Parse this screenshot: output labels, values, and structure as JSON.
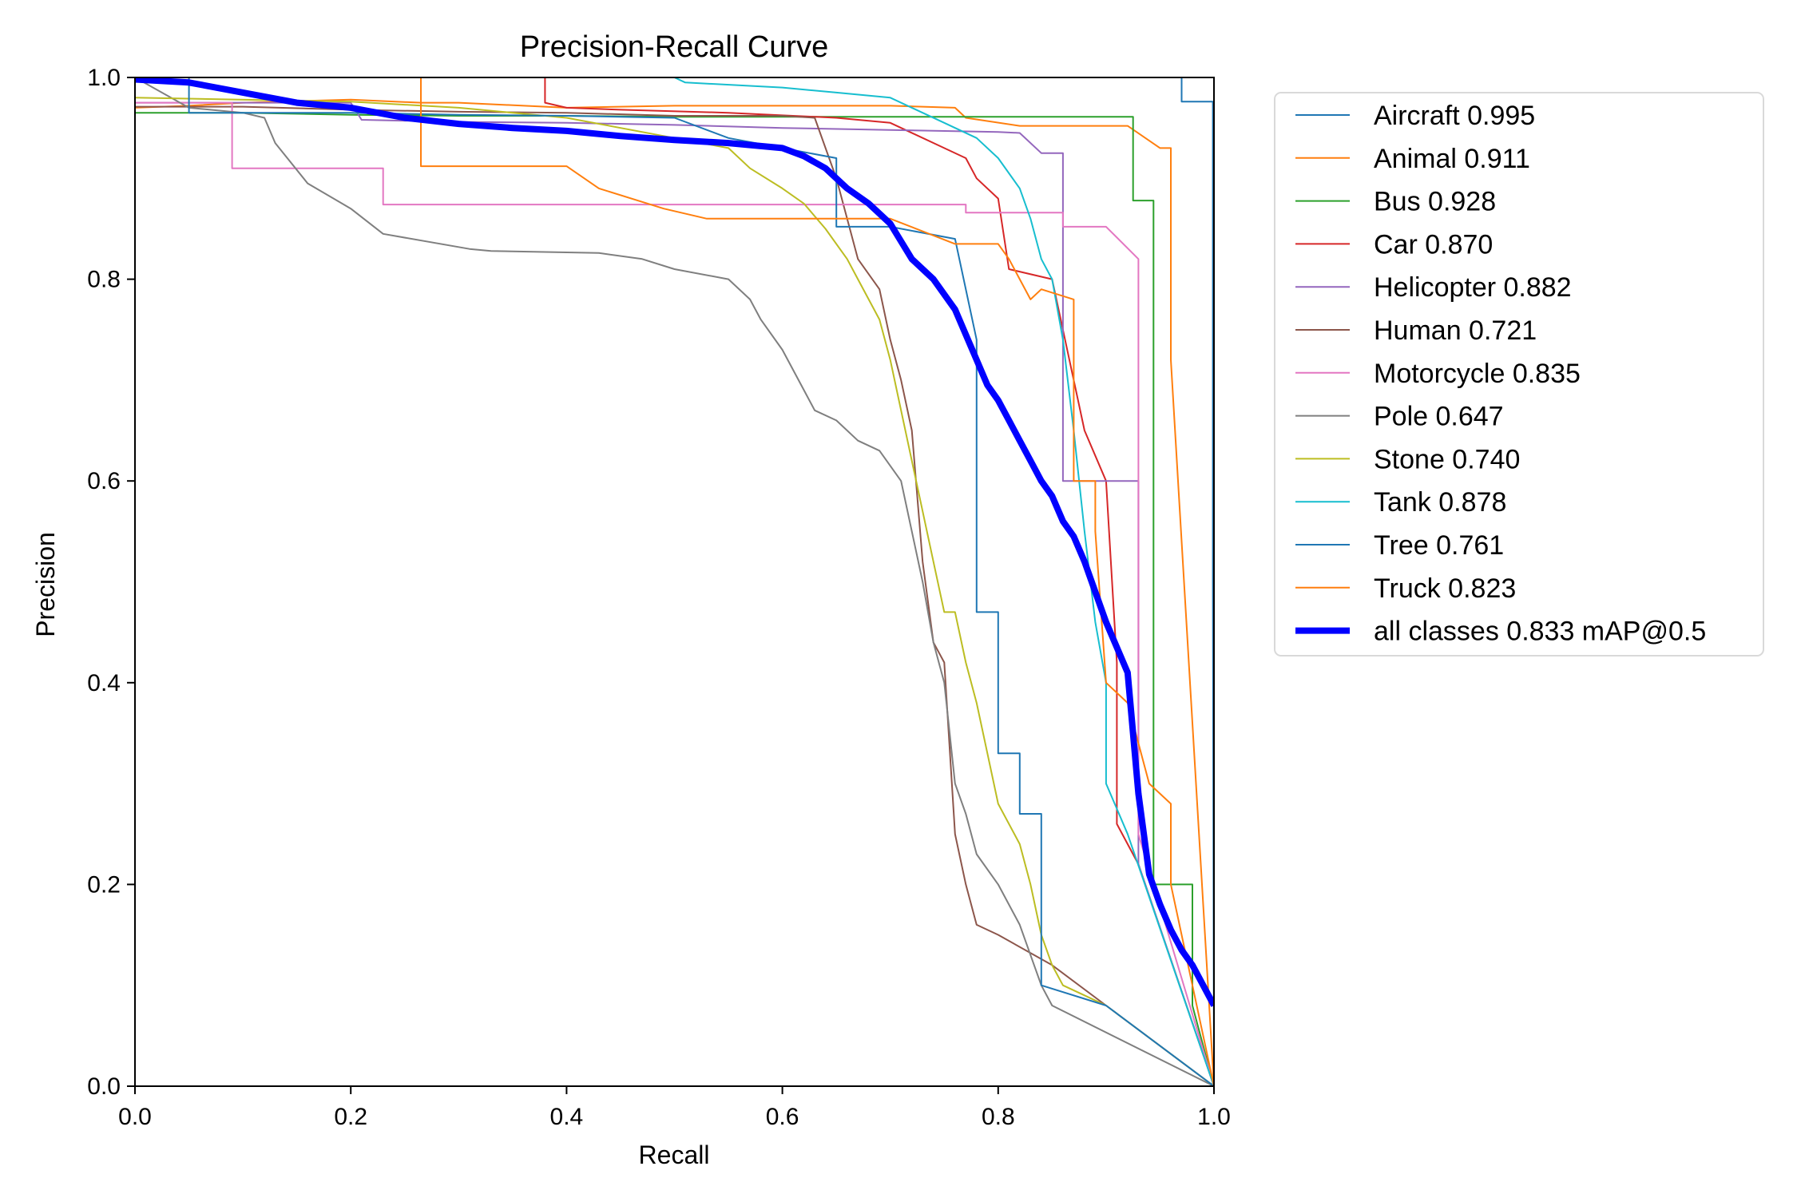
{
  "chart_data": {
    "type": "line",
    "title": "Precision-Recall Curve",
    "xlabel": "Recall",
    "ylabel": "Precision",
    "xlim": [
      0,
      1
    ],
    "ylim": [
      0,
      1
    ],
    "xticks": [
      "0.0",
      "0.2",
      "0.4",
      "0.6",
      "0.8",
      "1.0"
    ],
    "yticks": [
      "0.0",
      "0.2",
      "0.4",
      "0.6",
      "0.8",
      "1.0"
    ],
    "grid": false,
    "legend_position": "outside-right-top",
    "series": [
      {
        "name": "Aircraft 0.995",
        "color": "#1f77b4",
        "x": [
          0,
          0.97,
          0.97,
          0.999,
          0.999,
          1.0
        ],
        "y": [
          1.0,
          1.0,
          0.976,
          0.976,
          0.5,
          0.0
        ]
      },
      {
        "name": "Animal 0.911",
        "color": "#ff7f0e",
        "x": [
          0,
          0.05,
          0.1,
          0.2,
          0.265,
          0.3,
          0.4,
          0.5,
          0.6,
          0.65,
          0.7,
          0.76,
          0.77,
          0.82,
          0.87,
          0.92,
          0.95,
          0.96,
          0.96,
          1.0
        ],
        "y": [
          0.97,
          0.972,
          0.975,
          0.978,
          0.975,
          0.975,
          0.97,
          0.972,
          0.972,
          0.972,
          0.972,
          0.97,
          0.96,
          0.952,
          0.952,
          0.952,
          0.93,
          0.93,
          0.72,
          0.0
        ]
      },
      {
        "name": "Bus 0.928",
        "color": "#2ca02c",
        "x": [
          0,
          0.1,
          0.2,
          0.3,
          0.4,
          0.5,
          0.6,
          0.7,
          0.8,
          0.9,
          0.925,
          0.925,
          0.944,
          0.944,
          0.98,
          0.98,
          1.0
        ],
        "y": [
          0.965,
          0.965,
          0.963,
          0.962,
          0.962,
          0.961,
          0.961,
          0.961,
          0.961,
          0.961,
          0.961,
          0.878,
          0.878,
          0.2,
          0.2,
          0.08,
          0.0
        ]
      },
      {
        "name": "Car 0.870",
        "color": "#d62728",
        "x": [
          0,
          0.38,
          0.38,
          0.4,
          0.45,
          0.55,
          0.65,
          0.7,
          0.75,
          0.77,
          0.78,
          0.8,
          0.81,
          0.85,
          0.87,
          0.88,
          0.9,
          0.91,
          0.91,
          0.93,
          1.0
        ],
        "y": [
          1.0,
          1.0,
          0.975,
          0.97,
          0.968,
          0.965,
          0.96,
          0.955,
          0.93,
          0.92,
          0.9,
          0.88,
          0.81,
          0.8,
          0.7,
          0.65,
          0.6,
          0.42,
          0.26,
          0.22,
          0.0
        ]
      },
      {
        "name": "Helicopter 0.882",
        "color": "#9467bd",
        "x": [
          0,
          0.2,
          0.21,
          0.3,
          0.4,
          0.5,
          0.6,
          0.7,
          0.8,
          0.82,
          0.84,
          0.86,
          0.86,
          0.93,
          0.93,
          1.0
        ],
        "y": [
          0.975,
          0.975,
          0.958,
          0.956,
          0.955,
          0.953,
          0.95,
          0.948,
          0.946,
          0.945,
          0.925,
          0.925,
          0.6,
          0.6,
          0.22,
          0.0
        ]
      },
      {
        "name": "Human 0.721",
        "color": "#8c564b",
        "x": [
          0,
          0.1,
          0.2,
          0.3,
          0.4,
          0.5,
          0.6,
          0.63,
          0.65,
          0.67,
          0.69,
          0.7,
          0.71,
          0.72,
          0.73,
          0.74,
          0.75,
          0.76,
          0.77,
          0.78,
          0.8,
          0.85,
          0.9,
          1.0
        ],
        "y": [
          0.971,
          0.971,
          0.968,
          0.966,
          0.965,
          0.962,
          0.962,
          0.96,
          0.9,
          0.82,
          0.79,
          0.74,
          0.7,
          0.65,
          0.52,
          0.44,
          0.42,
          0.25,
          0.2,
          0.16,
          0.15,
          0.12,
          0.08,
          0.0
        ]
      },
      {
        "name": "Motorcycle 0.835",
        "color": "#e377c2",
        "x": [
          0,
          0.09,
          0.09,
          0.23,
          0.23,
          0.5,
          0.6,
          0.7,
          0.77,
          0.77,
          0.86,
          0.86,
          0.9,
          0.93,
          0.93,
          1.0
        ],
        "y": [
          0.975,
          0.975,
          0.91,
          0.91,
          0.874,
          0.874,
          0.874,
          0.874,
          0.874,
          0.866,
          0.866,
          0.852,
          0.852,
          0.82,
          0.25,
          0.0
        ]
      },
      {
        "name": "Pole 0.647",
        "color": "#7f7f7f",
        "x": [
          0,
          0.05,
          0.1,
          0.12,
          0.13,
          0.16,
          0.2,
          0.23,
          0.31,
          0.33,
          0.43,
          0.47,
          0.5,
          0.55,
          0.57,
          0.58,
          0.6,
          0.62,
          0.63,
          0.65,
          0.67,
          0.69,
          0.71,
          0.72,
          0.73,
          0.74,
          0.75,
          0.76,
          0.77,
          0.78,
          0.8,
          0.82,
          0.84,
          0.85,
          1.0
        ],
        "y": [
          1.0,
          0.97,
          0.965,
          0.96,
          0.935,
          0.895,
          0.87,
          0.845,
          0.83,
          0.828,
          0.826,
          0.82,
          0.81,
          0.8,
          0.78,
          0.76,
          0.73,
          0.69,
          0.67,
          0.66,
          0.64,
          0.63,
          0.6,
          0.55,
          0.5,
          0.44,
          0.4,
          0.3,
          0.27,
          0.23,
          0.2,
          0.16,
          0.1,
          0.08,
          0.0
        ]
      },
      {
        "name": "Stone 0.740",
        "color": "#bcbd22",
        "x": [
          0,
          0.2,
          0.3,
          0.4,
          0.5,
          0.55,
          0.57,
          0.6,
          0.62,
          0.64,
          0.66,
          0.67,
          0.68,
          0.69,
          0.7,
          0.71,
          0.72,
          0.73,
          0.74,
          0.75,
          0.76,
          0.77,
          0.78,
          0.79,
          0.8,
          0.82,
          0.83,
          0.84,
          0.85,
          0.86,
          0.88,
          0.9,
          1.0
        ],
        "y": [
          0.98,
          0.976,
          0.97,
          0.96,
          0.94,
          0.93,
          0.91,
          0.89,
          0.875,
          0.85,
          0.82,
          0.8,
          0.78,
          0.76,
          0.72,
          0.67,
          0.62,
          0.57,
          0.52,
          0.47,
          0.47,
          0.42,
          0.38,
          0.33,
          0.28,
          0.24,
          0.2,
          0.15,
          0.12,
          0.1,
          0.09,
          0.08,
          0.0
        ]
      },
      {
        "name": "Tank 0.878",
        "color": "#17becf",
        "x": [
          0,
          0.5,
          0.51,
          0.6,
          0.65,
          0.7,
          0.73,
          0.75,
          0.78,
          0.8,
          0.82,
          0.83,
          0.84,
          0.85,
          0.86,
          0.87,
          0.88,
          0.89,
          0.9,
          0.9,
          0.92,
          1.0
        ],
        "y": [
          1.0,
          1.0,
          0.995,
          0.99,
          0.985,
          0.98,
          0.965,
          0.955,
          0.94,
          0.92,
          0.89,
          0.86,
          0.82,
          0.8,
          0.74,
          0.65,
          0.55,
          0.46,
          0.4,
          0.3,
          0.25,
          0.0
        ]
      },
      {
        "name": "Tree 0.761",
        "color": "#1f77b4",
        "x": [
          0,
          0.05,
          0.05,
          0.2,
          0.3,
          0.4,
          0.5,
          0.55,
          0.6,
          0.65,
          0.65,
          0.7,
          0.76,
          0.78,
          0.78,
          0.8,
          0.8,
          0.82,
          0.82,
          0.84,
          0.84,
          0.9,
          1.0
        ],
        "y": [
          1.0,
          1.0,
          0.965,
          0.965,
          0.963,
          0.962,
          0.96,
          0.94,
          0.93,
          0.92,
          0.852,
          0.852,
          0.84,
          0.74,
          0.47,
          0.47,
          0.33,
          0.33,
          0.27,
          0.27,
          0.1,
          0.08,
          0.0
        ]
      },
      {
        "name": "Truck 0.823",
        "color": "#ff7f0e",
        "x": [
          0,
          0.265,
          0.265,
          0.4,
          0.43,
          0.49,
          0.53,
          0.7,
          0.76,
          0.8,
          0.81,
          0.82,
          0.83,
          0.84,
          0.87,
          0.87,
          0.89,
          0.89,
          0.9,
          0.92,
          0.94,
          0.96,
          0.96,
          0.98,
          1.0
        ],
        "y": [
          1.0,
          1.0,
          0.912,
          0.912,
          0.89,
          0.87,
          0.86,
          0.86,
          0.835,
          0.835,
          0.82,
          0.8,
          0.78,
          0.79,
          0.78,
          0.6,
          0.6,
          0.55,
          0.4,
          0.38,
          0.3,
          0.28,
          0.2,
          0.1,
          0.0
        ]
      },
      {
        "name": "all classes 0.833 mAP@0.5",
        "color": "#0000ff",
        "highlight": true,
        "x": [
          0,
          0.05,
          0.1,
          0.15,
          0.2,
          0.25,
          0.3,
          0.35,
          0.4,
          0.45,
          0.5,
          0.55,
          0.6,
          0.62,
          0.64,
          0.66,
          0.68,
          0.7,
          0.72,
          0.74,
          0.76,
          0.77,
          0.78,
          0.79,
          0.8,
          0.81,
          0.82,
          0.83,
          0.84,
          0.85,
          0.86,
          0.87,
          0.88,
          0.89,
          0.9,
          0.91,
          0.92,
          0.93,
          0.94,
          0.95,
          0.96,
          0.97,
          0.98,
          0.99,
          1.0
        ],
        "y": [
          0.998,
          0.995,
          0.985,
          0.975,
          0.97,
          0.96,
          0.954,
          0.95,
          0.947,
          0.942,
          0.938,
          0.935,
          0.93,
          0.922,
          0.91,
          0.89,
          0.875,
          0.855,
          0.82,
          0.8,
          0.77,
          0.745,
          0.72,
          0.695,
          0.68,
          0.66,
          0.64,
          0.62,
          0.6,
          0.585,
          0.56,
          0.545,
          0.52,
          0.49,
          0.46,
          0.435,
          0.41,
          0.29,
          0.21,
          0.18,
          0.155,
          0.135,
          0.12,
          0.1,
          0.08
        ]
      }
    ]
  }
}
